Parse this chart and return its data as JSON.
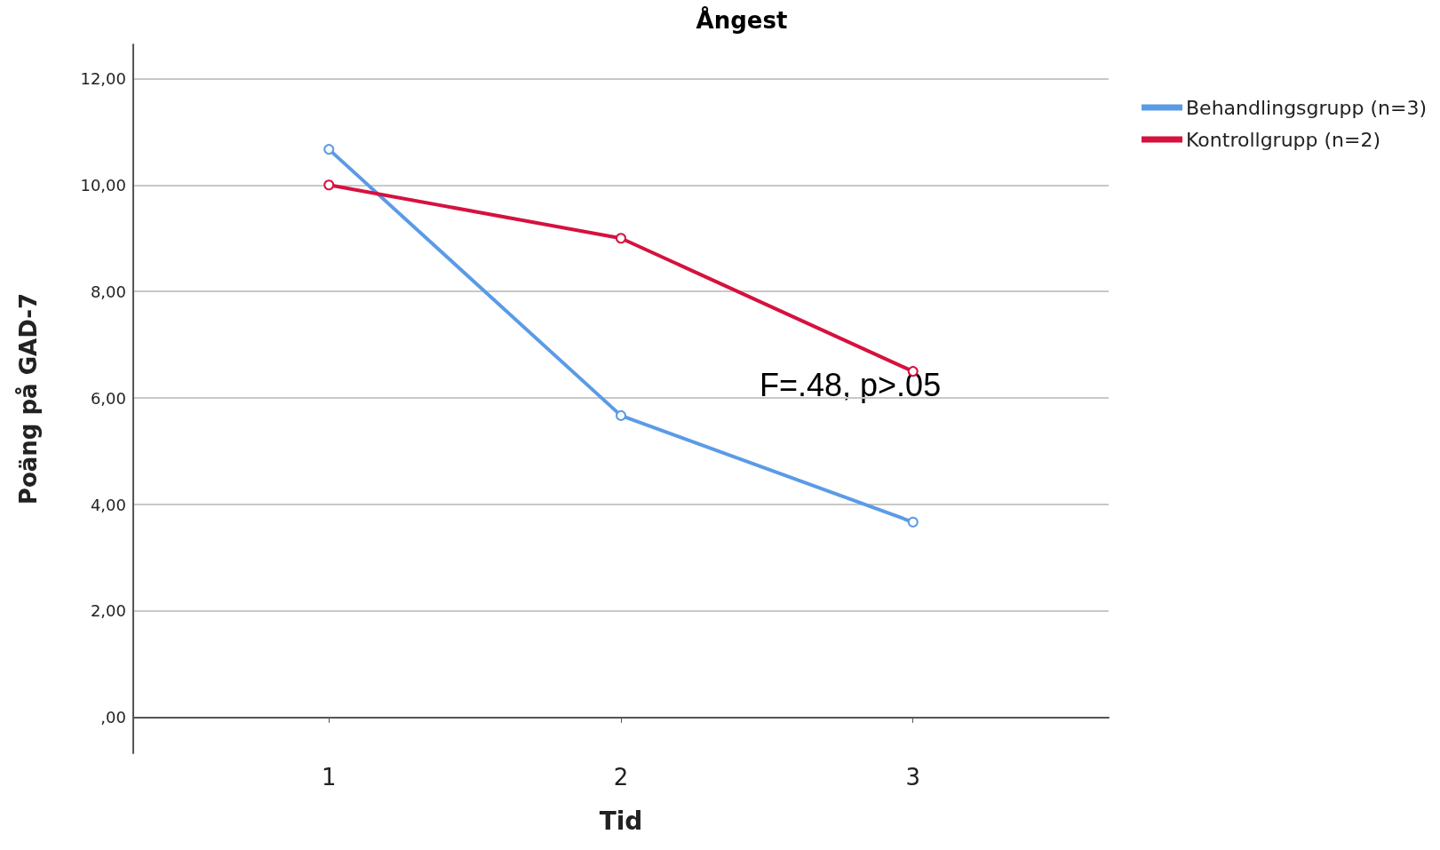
{
  "chart_data": {
    "type": "line",
    "title": "Ångest",
    "xlabel": "Tid",
    "ylabel": "Poäng på GAD-7",
    "x": [
      1,
      2,
      3
    ],
    "series": [
      {
        "name": "Behandlingsgrupp (n=3)",
        "color": "#5b9be6",
        "values": [
          10.67,
          5.67,
          3.67
        ]
      },
      {
        "name": "Kontrollgrupp (n=2)",
        "color": "#d5123f",
        "values": [
          10,
          9,
          6.5
        ]
      }
    ],
    "xlim": [
      0.33,
      3.67
    ],
    "xticks": [
      1,
      2,
      3
    ],
    "ylim": [
      -0.67,
      12.64
    ],
    "yticks": [
      {
        "value": 0,
        "label": ",00"
      },
      {
        "value": 2,
        "label": "2,00"
      },
      {
        "value": 4,
        "label": "4,00"
      },
      {
        "value": 6,
        "label": "6,00"
      },
      {
        "value": 8,
        "label": "8,00"
      },
      {
        "value": 10,
        "label": "10,00"
      },
      {
        "value": 12,
        "label": "12,00"
      }
    ],
    "grid": "y",
    "legend": "top right",
    "marker": "circle",
    "line_style": "solid",
    "annotations": [
      "F=.48, p>.05"
    ]
  }
}
